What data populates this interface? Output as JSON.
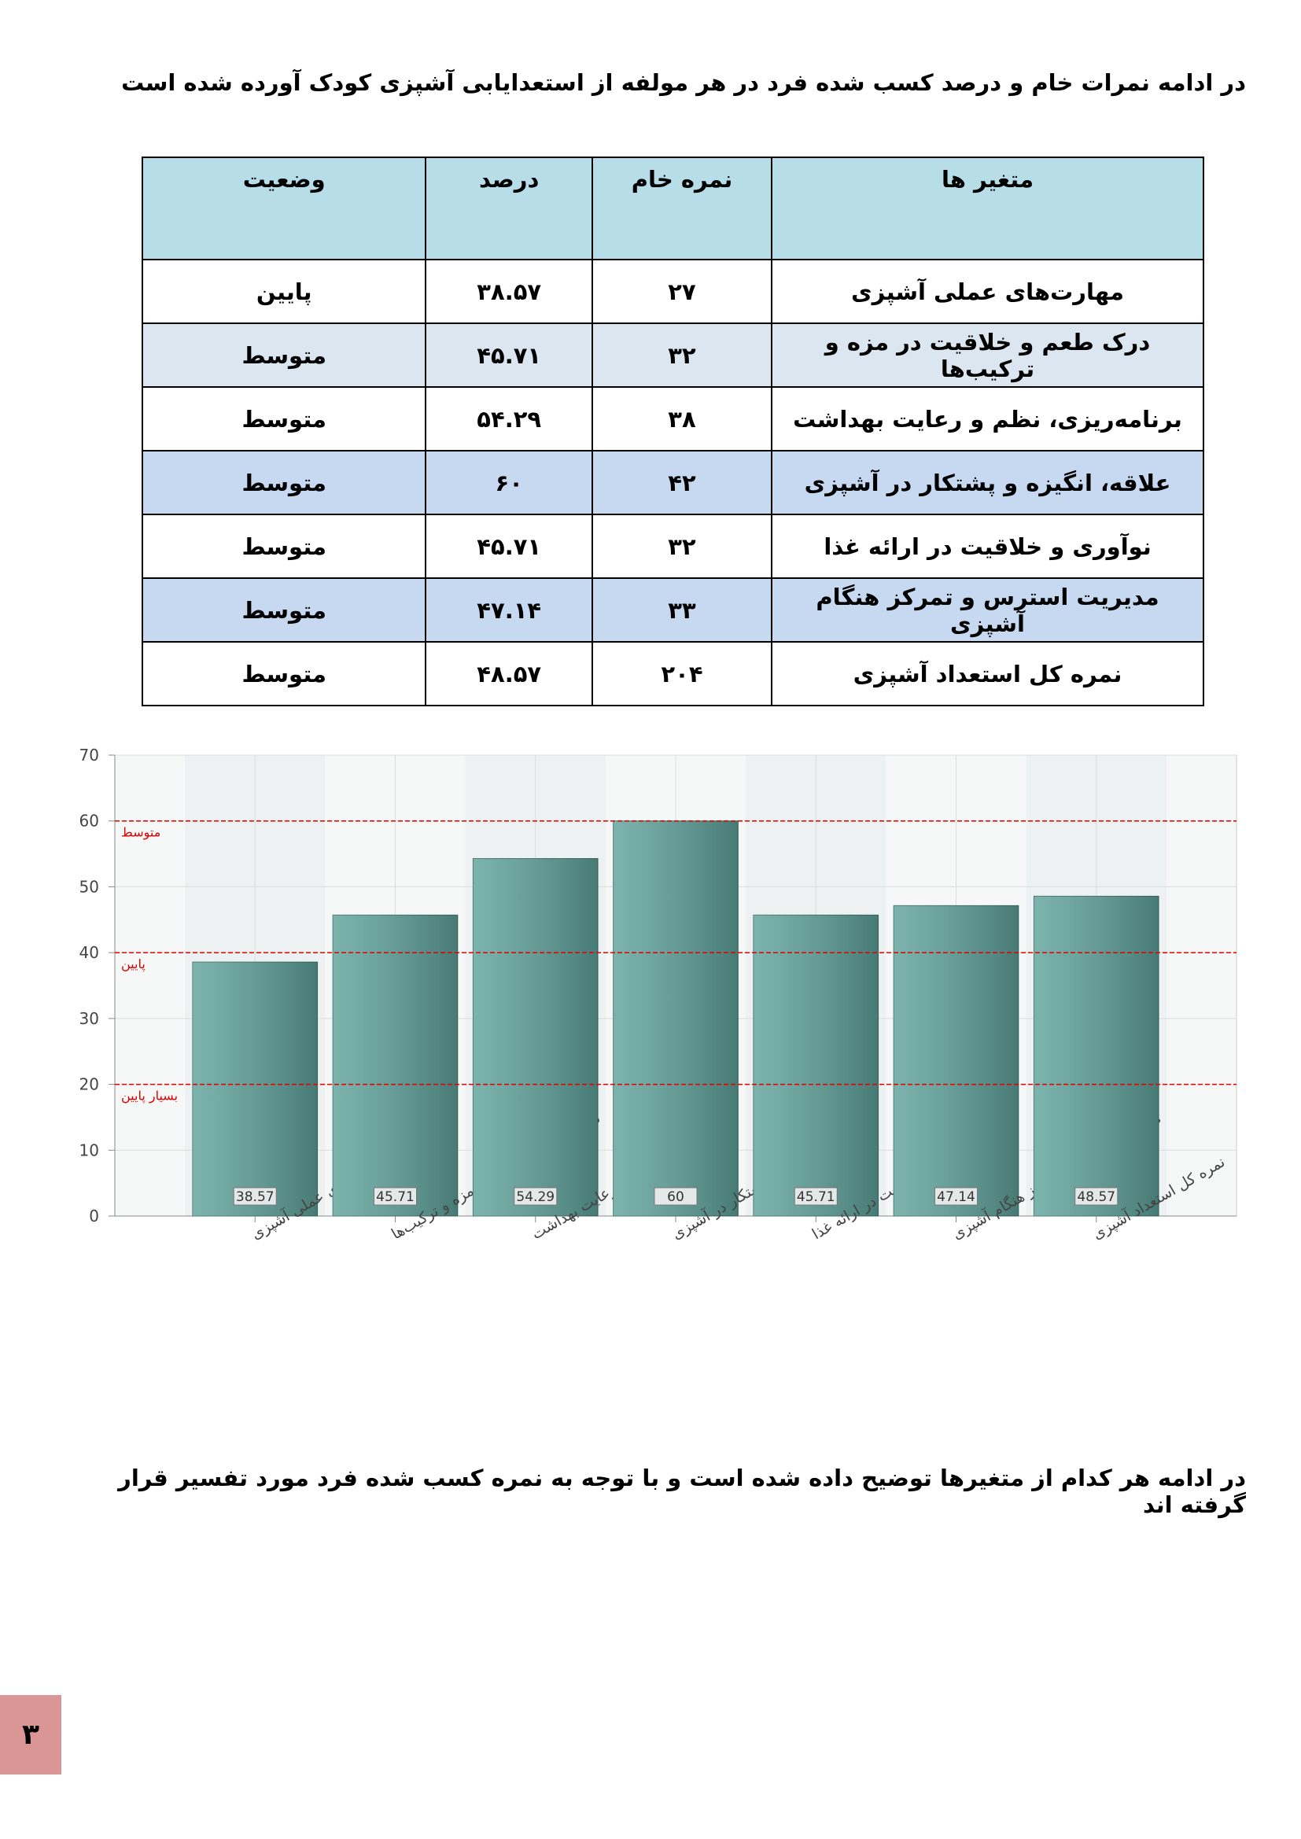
{
  "intro": "در ادامه نمرات خام و درصد کسب شده فرد در هر مولفه از استعدایابی آشپزی کودک آورده شده است",
  "table": {
    "headers": [
      "متغیر ها",
      "نمره خام",
      "درصد",
      "وضعیت"
    ],
    "rows": [
      [
        "مهارت‌های عملی آشپزی",
        "۲۷",
        "۳۸.۵۷",
        "پایین"
      ],
      [
        "درک طعم و خلاقیت در مزه و ترکیب‌ها",
        "۳۲",
        "۴۵.۷۱",
        "متوسط"
      ],
      [
        "برنامه‌ریزی، نظم و رعایت بهداشت",
        "۳۸",
        "۵۴.۲۹",
        "متوسط"
      ],
      [
        "علاقه، انگیزه و پشتکار در آشپزی",
        "۴۲",
        "۶۰",
        "متوسط"
      ],
      [
        "نوآوری و خلاقیت در ارائه غذا",
        "۳۲",
        "۴۵.۷۱",
        "متوسط"
      ],
      [
        "مدیریت استرس و تمرکز هنگام آشپزی",
        "۳۳",
        "۴۷.۱۴",
        "متوسط"
      ],
      [
        "نمره کل استعداد آشپزی",
        "۲۰۴",
        "۴۸.۵۷",
        "متوسط"
      ]
    ]
  },
  "chart_data": {
    "type": "bar",
    "categories": [
      "مهارت‌های عملی آشپزی",
      "درک طعم و خلاقیت در مزه و ترکیب‌ها",
      "برنامه‌ریزی، نظم و رعایت بهداشت",
      "علاقه، انگیزه و پشتکار در آشپزی",
      "نوآوری و خلاقیت در ارائه غذا",
      "مدیریت استرس و تمرکز هنگام آشپزی",
      "نمره کل استعداد آشپزی"
    ],
    "values": [
      38.57,
      45.71,
      54.29,
      60,
      45.71,
      47.14,
      48.57
    ],
    "color": "#5fa39b",
    "ylim": [
      0,
      70
    ],
    "yticks": [
      0,
      10,
      20,
      30,
      40,
      50,
      60,
      70
    ],
    "grid": true,
    "reference_lines": [
      {
        "value": 60,
        "label": "متوسط"
      },
      {
        "value": 40,
        "label": "پایین"
      },
      {
        "value": 20,
        "label": "بسیار پایین"
      }
    ],
    "reference_color": "#e00000"
  },
  "closing": "در ادامه هر کدام از متغیرها توضیح داده شده است و با توجه به نمره کسب شده فرد مورد تفسیر قرار گرفته اند",
  "page_number": "۳"
}
